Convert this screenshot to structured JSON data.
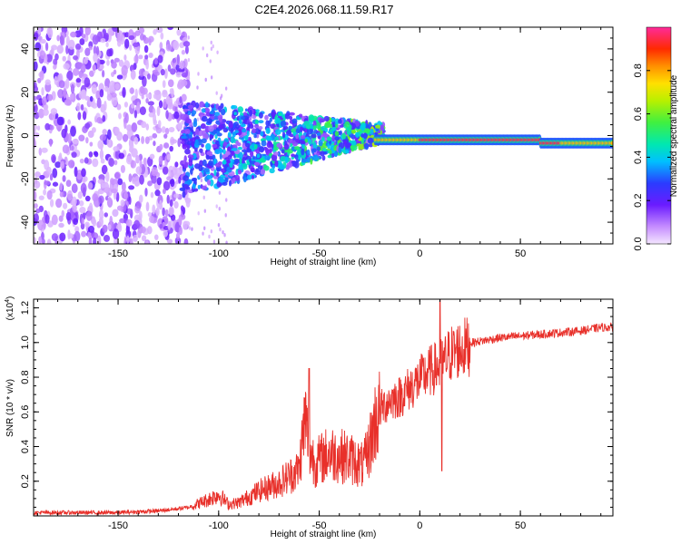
{
  "title": "C2E4.2026.068.11.59.R17",
  "chart_data": [
    {
      "type": "heatmap",
      "name": "spectrogram",
      "xlabel": "Height of straight line (km)",
      "ylabel": "Frequency (Hz)",
      "xlim": [
        -192,
        96
      ],
      "ylim": [
        -50,
        50
      ],
      "xticks": [
        -150,
        -100,
        -50,
        0,
        50
      ],
      "xtick_labels": [
        "-150",
        "-100",
        "-50",
        "0",
        "50"
      ],
      "yticks": [
        -40,
        -20,
        0,
        20,
        40
      ],
      "ytick_labels": [
        "-40",
        "-20",
        "0",
        "20",
        "40"
      ],
      "colorbar": {
        "label": "Normalized spectral amplitude",
        "range": [
          0,
          1
        ],
        "ticks": [
          0.0,
          0.2,
          0.4,
          0.6,
          0.8
        ],
        "tick_labels": [
          "0.0",
          "0.2",
          "0.4",
          "0.6",
          "0.8"
        ]
      },
      "description_regions": [
        {
          "x_range": [
            -192,
            -115
          ],
          "amplitude": 0.1
        },
        {
          "x_range": [
            -115,
            -60
          ],
          "amplitude": 0.25
        },
        {
          "x_range": [
            -60,
            -20
          ],
          "amplitude": 0.45
        },
        {
          "x_range": [
            -20,
            96
          ],
          "amplitude": 0.95
        }
      ]
    },
    {
      "type": "line",
      "name": "snr",
      "xlabel": "Height of straight line (km)",
      "ylabel": "SNR (10 * v/v)",
      "y_multiplier": "(x10",
      "y_multiplier_exp": "4",
      "y_multiplier_close": ")",
      "xlim": [
        -192,
        96
      ],
      "ylim": [
        0,
        1.25
      ],
      "xticks": [
        -150,
        -100,
        -50,
        0,
        50
      ],
      "xtick_labels": [
        "-150",
        "-100",
        "-50",
        "0",
        "50"
      ],
      "yticks": [
        0.2,
        0.4,
        0.6,
        0.8,
        1.0,
        1.2
      ],
      "ytick_labels": [
        "0.2",
        "0.4",
        "0.6",
        "0.8",
        "1.0",
        "1.2"
      ],
      "series": [
        {
          "name": "SNR",
          "color": "#e8302a",
          "x": [
            -192,
            -170,
            -150,
            -130,
            -115,
            -105,
            -100,
            -95,
            -90,
            -80,
            -70,
            -60,
            -57,
            -55,
            -52,
            -45,
            -35,
            -28,
            -25,
            -22,
            -20,
            -15,
            -10,
            -5,
            0,
            5,
            10,
            12,
            15,
            20,
            25,
            30,
            40,
            50,
            60,
            70,
            80,
            90,
            96
          ],
          "y": [
            0.02,
            0.02,
            0.02,
            0.03,
            0.05,
            0.1,
            0.13,
            0.07,
            0.08,
            0.15,
            0.2,
            0.28,
            0.6,
            0.4,
            0.32,
            0.38,
            0.35,
            0.3,
            0.42,
            0.58,
            0.62,
            0.68,
            0.7,
            0.75,
            0.8,
            0.85,
            0.88,
            0.9,
            0.95,
            0.98,
            1.0,
            1.01,
            1.03,
            1.04,
            1.05,
            1.06,
            1.07,
            1.09,
            1.09
          ]
        }
      ],
      "spikes": [
        {
          "x": -55,
          "y": 0.85
        },
        {
          "x": 10,
          "y": 1.25
        },
        {
          "x": 11,
          "y": 0.26
        }
      ]
    }
  ],
  "colors": {
    "snr_line": "#e8302a",
    "axis": "#000000"
  }
}
